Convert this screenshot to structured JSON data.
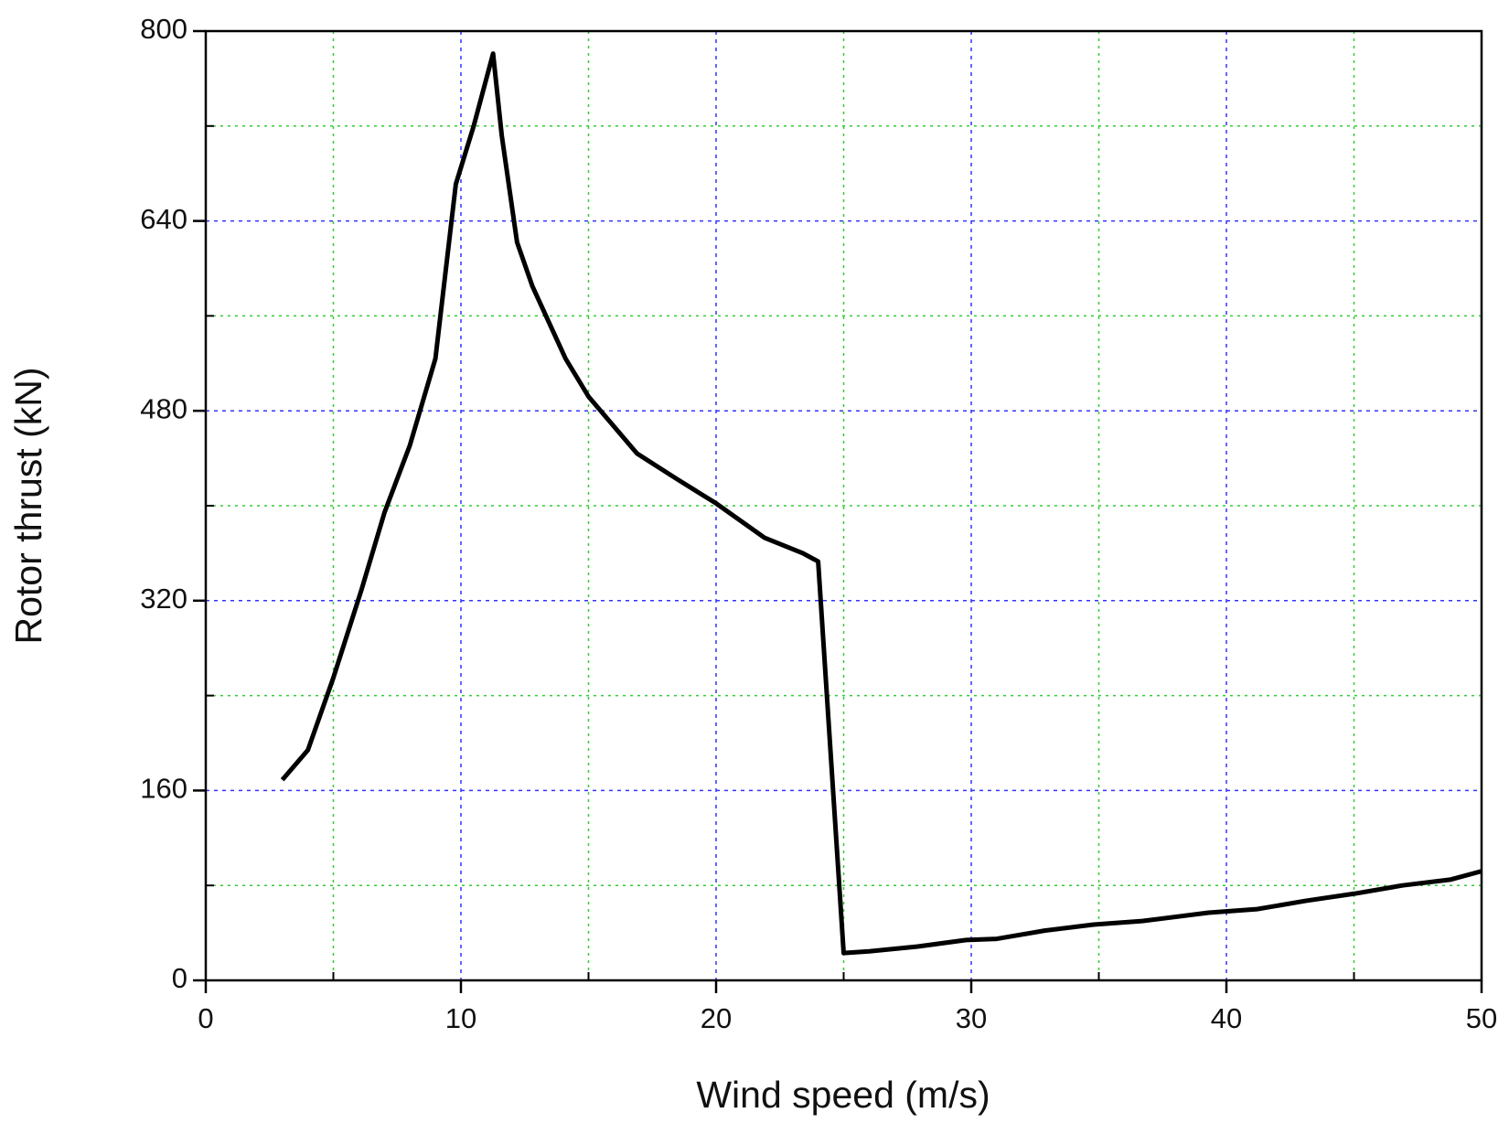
{
  "chart_data": {
    "type": "line",
    "xlabel": "Wind speed (m/s)",
    "ylabel": "Rotor thrust (kN)",
    "x": [
      3,
      4,
      5,
      6.1,
      7,
      8,
      9,
      9.8,
      10.5,
      11.26,
      11.6,
      12.2,
      12.8,
      14.1,
      15,
      16.9,
      18.5,
      20,
      21.9,
      23.4,
      24,
      25,
      26,
      27.9,
      29.8,
      31,
      32.9,
      34.8,
      36.7,
      39.3,
      41.2,
      43.1,
      45,
      46.9,
      48.8,
      50
    ],
    "series": [
      {
        "name": "Rotor thrust",
        "color": "#000000",
        "values": [
          169,
          194,
          255,
          329,
          394,
          451,
          524,
          671,
          720,
          781,
          712,
          622,
          585,
          524,
          492,
          444,
          422,
          402,
          373,
          360,
          353,
          23,
          24.5,
          28.5,
          34,
          35,
          42,
          47,
          50,
          57,
          60,
          67,
          73,
          80,
          85,
          92
        ]
      }
    ],
    "xlim": [
      0,
      50
    ],
    "xticks": [
      0,
      10,
      20,
      30,
      40,
      50
    ],
    "ylim": [
      0,
      800
    ],
    "yticks": [
      0,
      160,
      320,
      480,
      640,
      800
    ],
    "x_minor_ticks": [
      5,
      15,
      25,
      35,
      45
    ],
    "y_minor_ticks": [
      80,
      240,
      400,
      560,
      720
    ],
    "grid": true,
    "grid_color": "#3333ff",
    "minor_grid_color": "#33cc33"
  }
}
